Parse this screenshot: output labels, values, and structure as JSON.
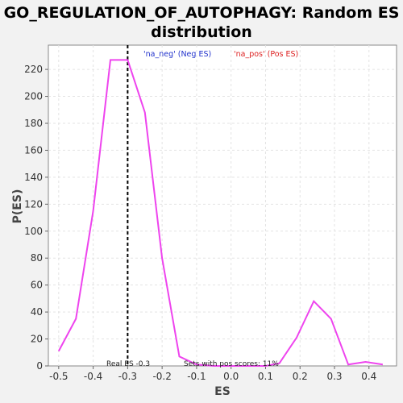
{
  "chart_data": {
    "type": "line",
    "title_line1": "GO_REGULATION_OF_AUTOPHAGY: Random ES",
    "title_line2": "distribution",
    "xlabel": "ES",
    "ylabel": "P(ES)",
    "xlim": [
      -0.53,
      0.48
    ],
    "ylim": [
      0,
      238
    ],
    "xticks": [
      -0.5,
      -0.4,
      -0.3,
      -0.2,
      -0.1,
      0.0,
      0.1,
      0.2,
      0.3,
      0.4
    ],
    "xtick_labels": [
      "-0.5",
      "-0.4",
      "-0.3",
      "-0.2",
      "-0.1",
      "0.0",
      "0.1",
      "0.2",
      "0.3",
      "0.4"
    ],
    "yticks": [
      0,
      20,
      40,
      60,
      80,
      100,
      120,
      140,
      160,
      180,
      200,
      220
    ],
    "ytick_labels": [
      "0",
      "20",
      "40",
      "60",
      "80",
      "100",
      "120",
      "140",
      "160",
      "180",
      "200",
      "220"
    ],
    "grid": true,
    "series": [
      {
        "color": "#ee44ee",
        "x": [
          -0.5,
          -0.45,
          -0.4,
          -0.35,
          -0.3,
          -0.25,
          -0.2,
          -0.15,
          -0.1,
          -0.05,
          0.0,
          0.05,
          0.1,
          0.14,
          0.19,
          0.24,
          0.29,
          0.34,
          0.39,
          0.44
        ],
        "y": [
          11,
          35,
          115,
          227,
          227,
          188,
          80,
          7,
          1,
          0,
          0,
          0,
          0,
          2,
          21,
          48,
          35,
          1,
          3,
          1
        ]
      }
    ],
    "legend": [
      {
        "label": "'na_neg' (Neg ES)",
        "color": "#2233cc"
      },
      {
        "label": "'na_pos' (Pos ES)",
        "color": "#dd2222"
      }
    ],
    "real_es": {
      "x": -0.3,
      "label": "Real ES -0.3"
    },
    "annotation": "Sets with pos scores: 11%"
  }
}
